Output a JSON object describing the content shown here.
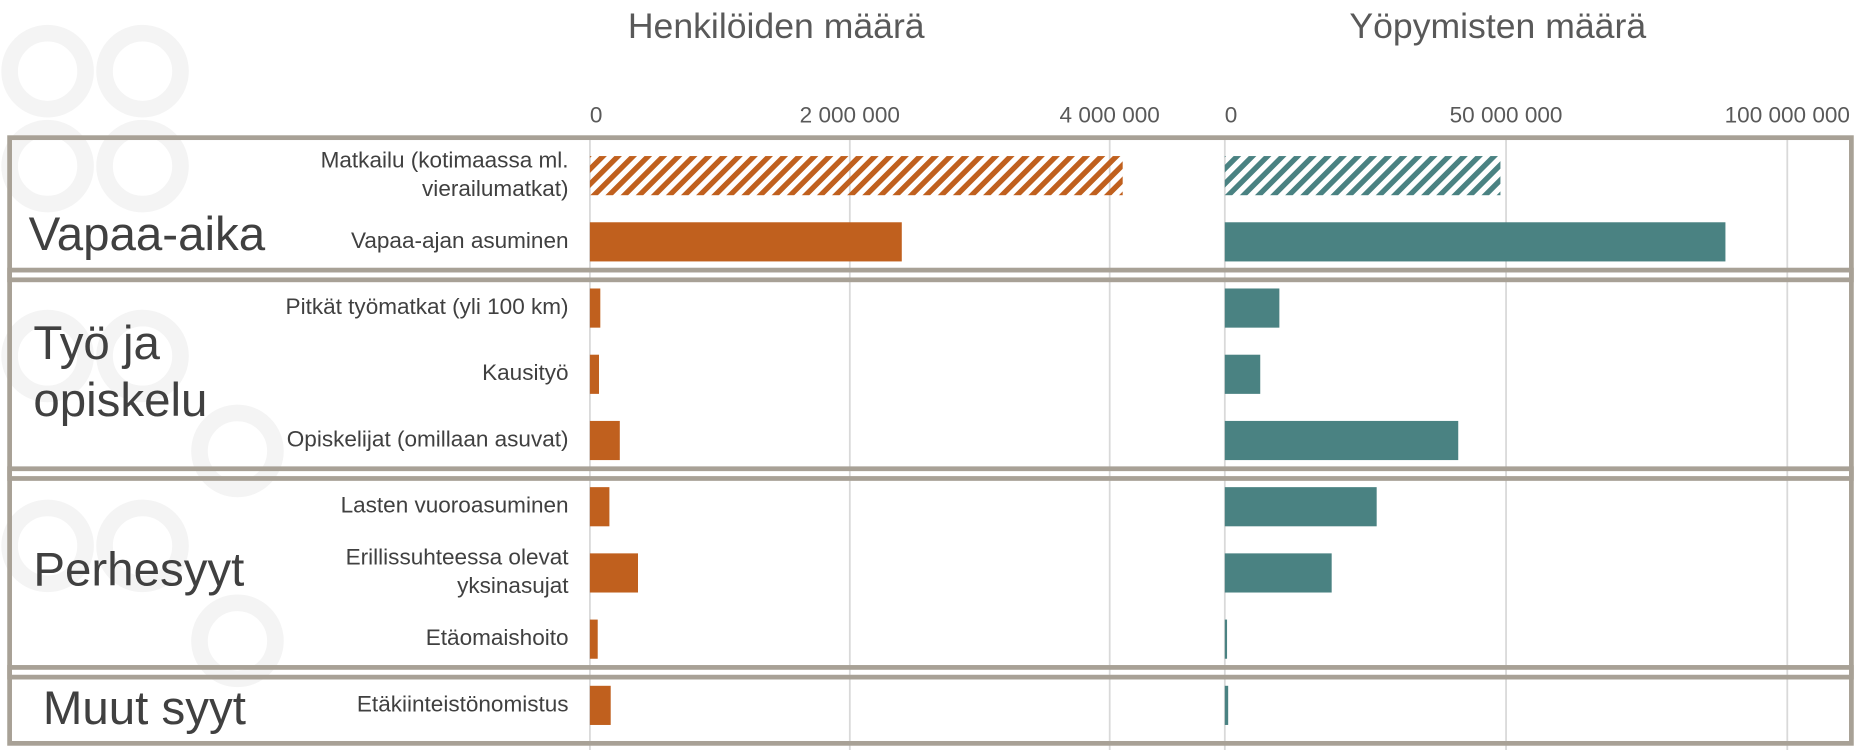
{
  "chart_data": [
    {
      "type": "bar",
      "orientation": "horizontal",
      "title": "Henkilöiden määrä",
      "groups": [
        "Vapaa-aika",
        "Työ ja opiskelu",
        "Perhesyyt",
        "Muut syyt"
      ],
      "categories": [
        "Matkailu (kotimaassa ml. vierailumatkat)",
        "Vapaa-ajan asuminen",
        "Pitkät työmatkat (yli 100 km)",
        "Kausityö",
        "Opiskelijat (omillaan asuvat)",
        "Lasten vuoroasuminen",
        "Erillissuhteessa olevat yksinasujat",
        "Etäomaishoito",
        "Etäkiinteistönomistus"
      ],
      "values": [
        4100000,
        2400000,
        80000,
        70000,
        230000,
        150000,
        370000,
        60000,
        160000
      ],
      "hatched": [
        true,
        false,
        false,
        false,
        false,
        false,
        false,
        false,
        false
      ],
      "color": "#c0601e",
      "xlim": [
        0,
        4500000
      ],
      "xticks": [
        0,
        {
          "value": 2000000,
          "label": "2 000 000"
        },
        {
          "value": 4000000,
          "label": "4 000 000"
        }
      ],
      "grid": true
    },
    {
      "type": "bar",
      "orientation": "horizontal",
      "title": "Yöpymisten määrä",
      "values": [
        49000000,
        89000000,
        9700000,
        6300000,
        41500000,
        27000000,
        19000000,
        400000,
        600000
      ],
      "hatched": [
        true,
        false,
        false,
        false,
        false,
        false,
        false,
        false,
        false
      ],
      "color": "#4a8282",
      "xlim": [
        0,
        110000000
      ],
      "xticks": [
        0,
        {
          "value": 50000000,
          "label": "50 000 000"
        },
        {
          "value": 100000000,
          "label": "100 000 000"
        }
      ],
      "grid": true
    }
  ]
}
